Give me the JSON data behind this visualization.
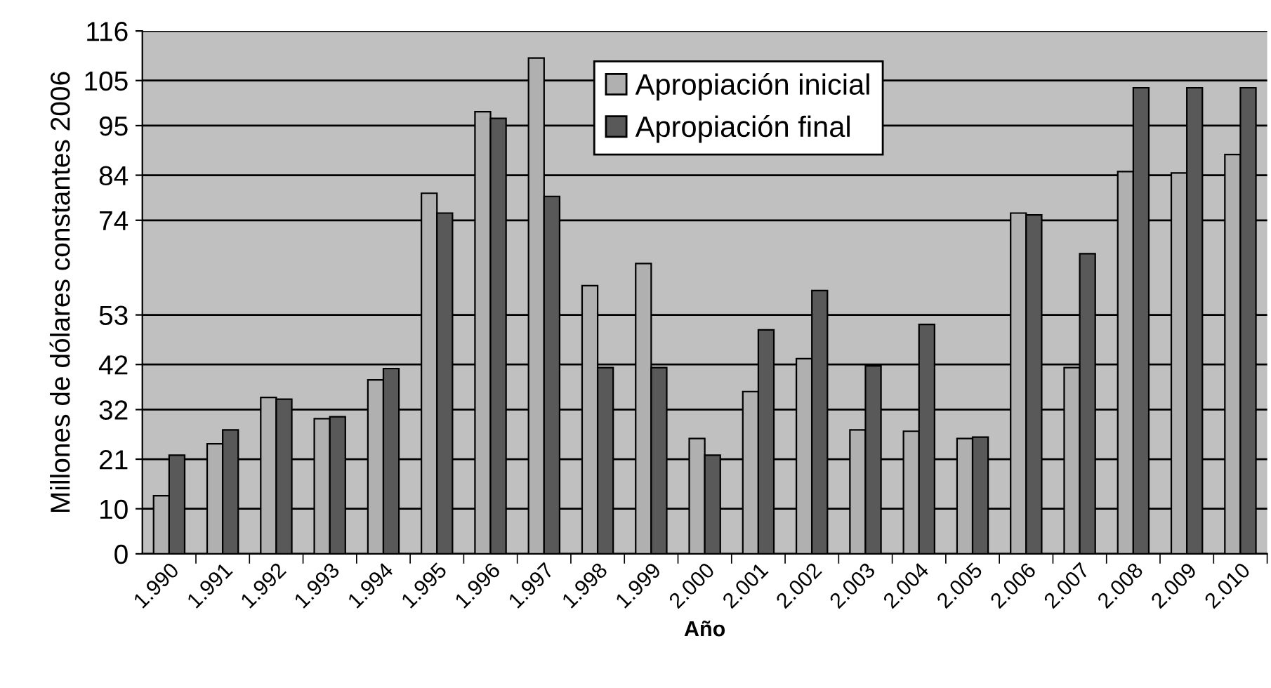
{
  "chart_data": {
    "type": "bar",
    "xlabel": "Año",
    "ylabel": "Millones de dólares constantes 2006",
    "categories": [
      "1.990",
      "1.991",
      "1.992",
      "1.993",
      "1.994",
      "1.995",
      "1.996",
      "1.997",
      "1.998",
      "1.999",
      "2.000",
      "2.001",
      "2.002",
      "2.003",
      "2.004",
      "2.005",
      "2.006",
      "2.007",
      "2.008",
      "2.009",
      "2.010"
    ],
    "series": [
      {
        "name": "Apropiación inicial",
        "color": "#b0b0b0",
        "values": [
          12.9,
          24.4,
          34.7,
          30.0,
          38.6,
          80.0,
          98.1,
          110.0,
          59.5,
          64.4,
          25.6,
          36.0,
          43.3,
          27.5,
          27.2,
          25.6,
          75.6,
          41.3,
          84.8,
          84.5,
          88.6
        ]
      },
      {
        "name": "Apropiación final",
        "color": "#595959",
        "values": [
          21.9,
          27.5,
          34.3,
          30.4,
          41.1,
          75.6,
          96.6,
          79.3,
          41.3,
          41.3,
          21.9,
          49.7,
          58.4,
          41.7,
          50.9,
          25.9,
          75.2,
          66.6,
          103.4,
          103.4,
          103.4
        ]
      }
    ],
    "ylim": [
      0,
      116
    ],
    "yticks": [
      0,
      10,
      21,
      32,
      42,
      53,
      74,
      84,
      95,
      105,
      116
    ],
    "grid": "y",
    "legend": "top center"
  }
}
